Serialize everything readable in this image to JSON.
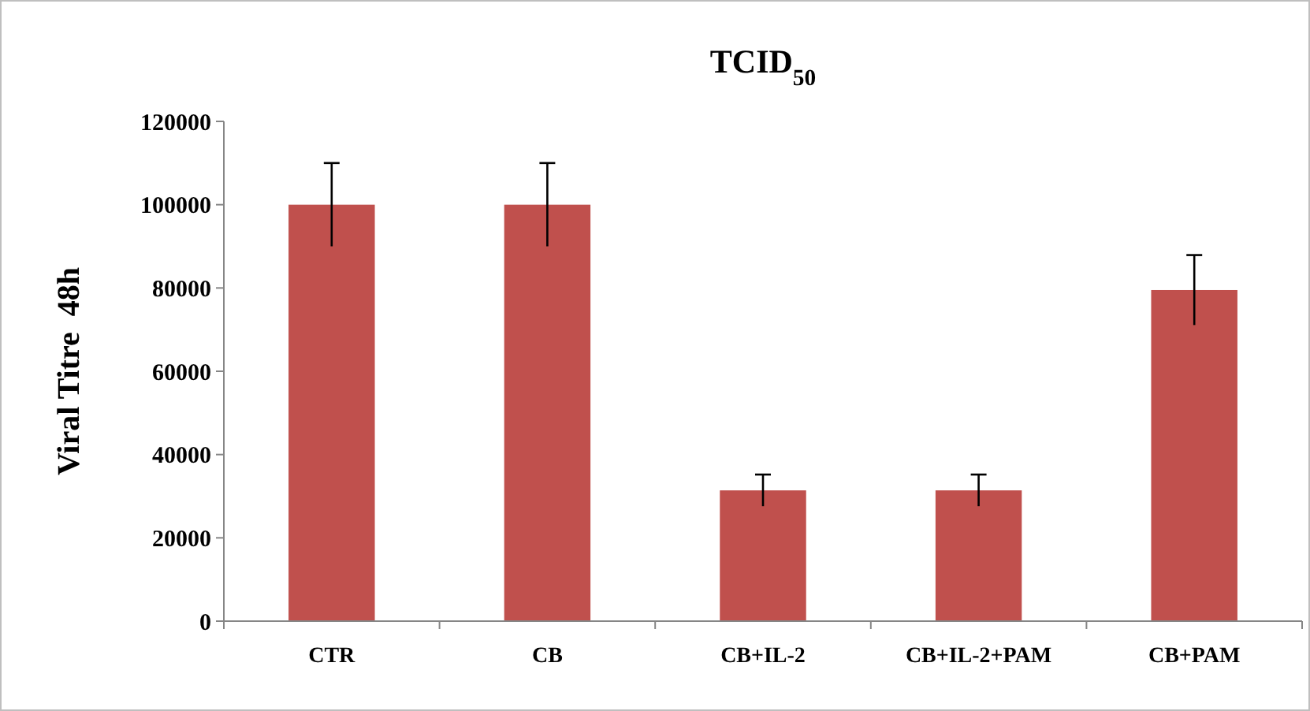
{
  "chart_data": {
    "type": "bar",
    "title": "TCID$_{50}$",
    "ylabel": "Viral Titre  48h",
    "categories": [
      "CTR",
      "CB",
      "CB+IL-2",
      "CB+IL-2+PAM",
      "CB+PAM"
    ],
    "values": [
      100000,
      100000,
      31400,
      31400,
      79500
    ],
    "errors": [
      10000,
      10000,
      3800,
      3800,
      8400
    ],
    "color": "#c0504d",
    "ylim": [
      0,
      120000
    ],
    "yticks": [
      0,
      20000,
      40000,
      60000,
      80000,
      100000,
      120000
    ],
    "grid": false
  }
}
